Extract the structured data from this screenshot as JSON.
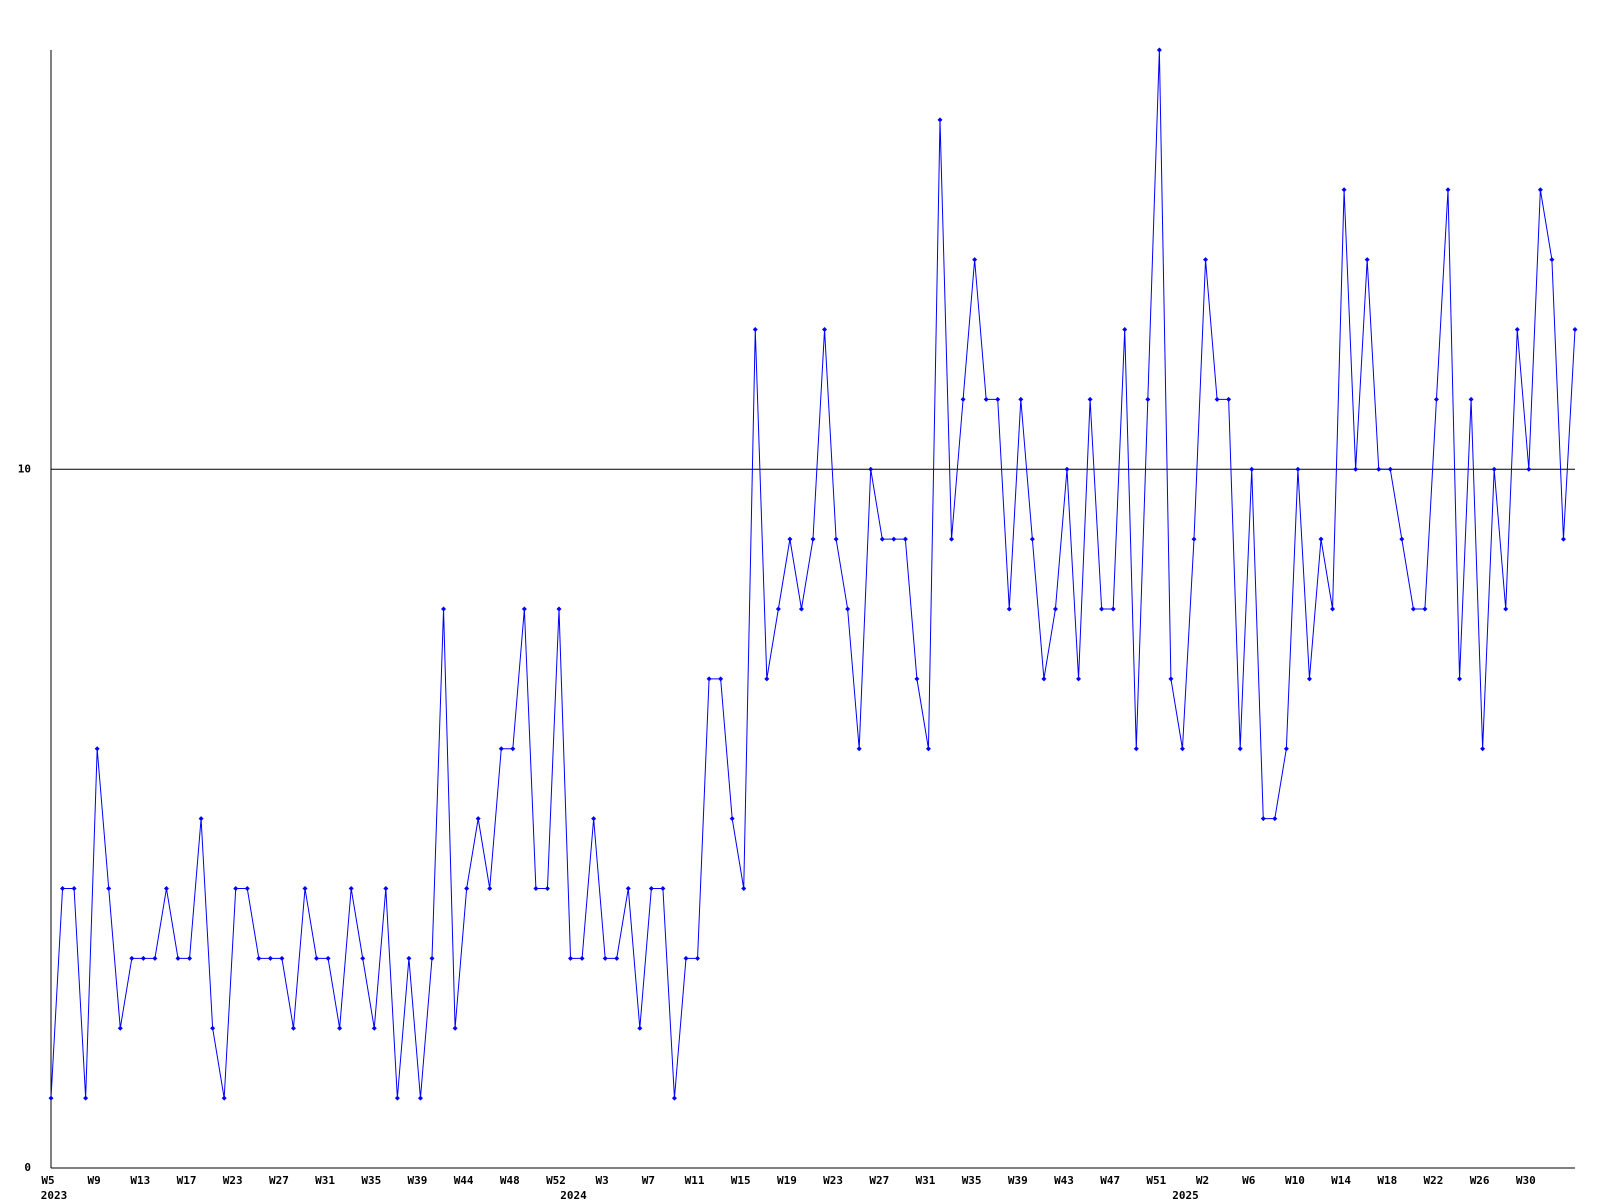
{
  "chart_data": {
    "type": "line",
    "categories": [
      "W5",
      null,
      null,
      null,
      "W9",
      null,
      null,
      null,
      "W13",
      null,
      null,
      null,
      "W17",
      null,
      null,
      null,
      "W23",
      null,
      null,
      null,
      "W27",
      null,
      null,
      null,
      "W31",
      null,
      null,
      null,
      "W35",
      null,
      null,
      null,
      "W39",
      null,
      null,
      null,
      "W44",
      null,
      null,
      null,
      "W48",
      null,
      null,
      null,
      "W52",
      null,
      null,
      null,
      "W3",
      null,
      null,
      null,
      "W7",
      null,
      null,
      null,
      "W11",
      null,
      null,
      null,
      "W15",
      null,
      null,
      null,
      "W19",
      null,
      null,
      null,
      "W23",
      null,
      null,
      null,
      "W27",
      null,
      null,
      null,
      "W31",
      null,
      null,
      null,
      "W35",
      null,
      null,
      null,
      "W39",
      null,
      null,
      null,
      "W43",
      null,
      null,
      null,
      "W47",
      null,
      null,
      null,
      "W51",
      null,
      null,
      null,
      "W2",
      null,
      null,
      null,
      "W6",
      null,
      null,
      null,
      "W10",
      null,
      null,
      null,
      "W14",
      null,
      null,
      null,
      "W18",
      null,
      null,
      null,
      "W22",
      null,
      null,
      null,
      "W26",
      null,
      null,
      null,
      "W30",
      null,
      null,
      null,
      null
    ],
    "year_labels": [
      "2023",
      null,
      null,
      null,
      null,
      null,
      null,
      null,
      null,
      null,
      null,
      null,
      null,
      null,
      null,
      null,
      null,
      null,
      null,
      null,
      null,
      null,
      null,
      null,
      null,
      null,
      null,
      null,
      null,
      null,
      null,
      null,
      null,
      null,
      null,
      null,
      null,
      null,
      null,
      null,
      null,
      null,
      null,
      null,
      null,
      "2024",
      null,
      null,
      null,
      null,
      null,
      null,
      null,
      null,
      null,
      null,
      null,
      null,
      null,
      null,
      null,
      null,
      null,
      null,
      null,
      null,
      null,
      null,
      null,
      null,
      null,
      null,
      null,
      null,
      null,
      null,
      null,
      null,
      null,
      null,
      null,
      null,
      null,
      null,
      null,
      null,
      null,
      null,
      null,
      null,
      null,
      null,
      null,
      null,
      null,
      null,
      null,
      null,
      "2025",
      null,
      null,
      null,
      null,
      null,
      null,
      null,
      null,
      null,
      null,
      null,
      null,
      null,
      null,
      null,
      null,
      null,
      null,
      null,
      null,
      null,
      null,
      null,
      null,
      null,
      null,
      null,
      null,
      null,
      null,
      null,
      null,
      null,
      null
    ],
    "values": [
      1,
      4,
      4,
      1,
      6,
      4,
      2,
      3,
      3,
      3,
      4,
      3,
      3,
      5,
      2,
      1,
      4,
      4,
      3,
      3,
      3,
      2,
      4,
      3,
      3,
      2,
      4,
      3,
      2,
      4,
      1,
      3,
      1,
      3,
      8,
      2,
      4,
      5,
      4,
      6,
      6,
      8,
      4,
      4,
      8,
      3,
      3,
      5,
      3,
      3,
      4,
      2,
      4,
      4,
      1,
      3,
      3,
      7,
      7,
      5,
      4,
      12,
      7,
      8,
      9,
      8,
      9,
      12,
      9,
      8,
      6,
      10,
      9,
      9,
      9,
      7,
      6,
      15,
      9,
      11,
      13,
      11,
      11,
      8,
      11,
      9,
      7,
      8,
      10,
      7,
      11,
      8,
      8,
      12,
      6,
      11,
      16,
      7,
      6,
      9,
      13,
      11,
      11,
      6,
      10,
      5,
      5,
      6,
      10,
      7,
      9,
      8,
      14,
      10,
      13,
      10,
      10,
      9,
      8,
      8,
      11,
      14,
      7,
      11,
      6,
      10,
      8,
      12,
      10,
      14,
      13,
      9,
      12
    ],
    "color": "#0000ff",
    "ylim": [
      0,
      16
    ],
    "yticks": [
      0,
      10
    ],
    "grid": true
  }
}
